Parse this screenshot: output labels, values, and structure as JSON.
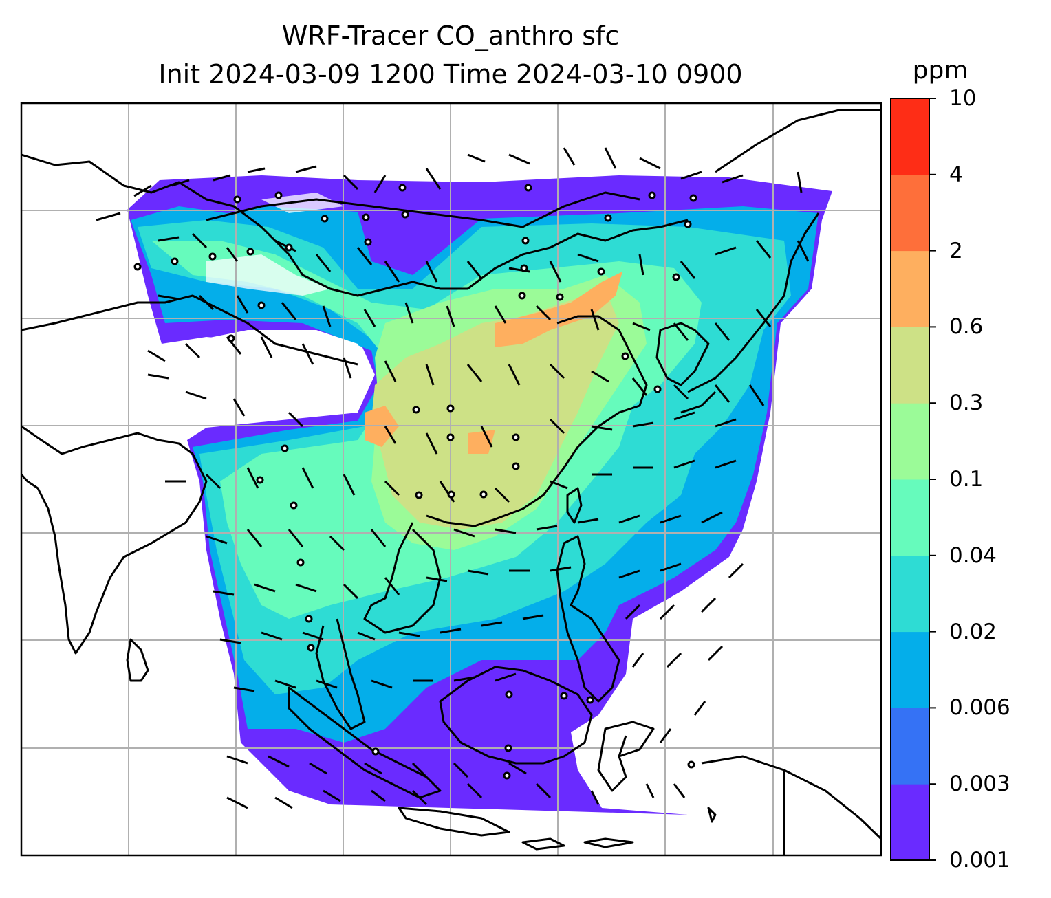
{
  "title": {
    "line1": "WRF-Tracer CO_anthro sfc",
    "line2": "Init 2024-03-09 1200 Time 2024-03-10 0900"
  },
  "colorbar": {
    "unit": "ppm",
    "ticks": [
      "0.001",
      "0.003",
      "0.006",
      "0.02",
      "0.04",
      "0.1",
      "0.3",
      "0.6",
      "2",
      "4",
      "10"
    ],
    "colors": [
      "#6a2bff",
      "#3572f5",
      "#04aeea",
      "#2edcd4",
      "#66fbbc",
      "#9bfb98",
      "#cde186",
      "#feaf5f",
      "#fe6f3a",
      "#fe2d16"
    ]
  },
  "map": {
    "gridlines": true,
    "coastline_color": "#000000",
    "grid_color": "#b0b0b0"
  }
}
